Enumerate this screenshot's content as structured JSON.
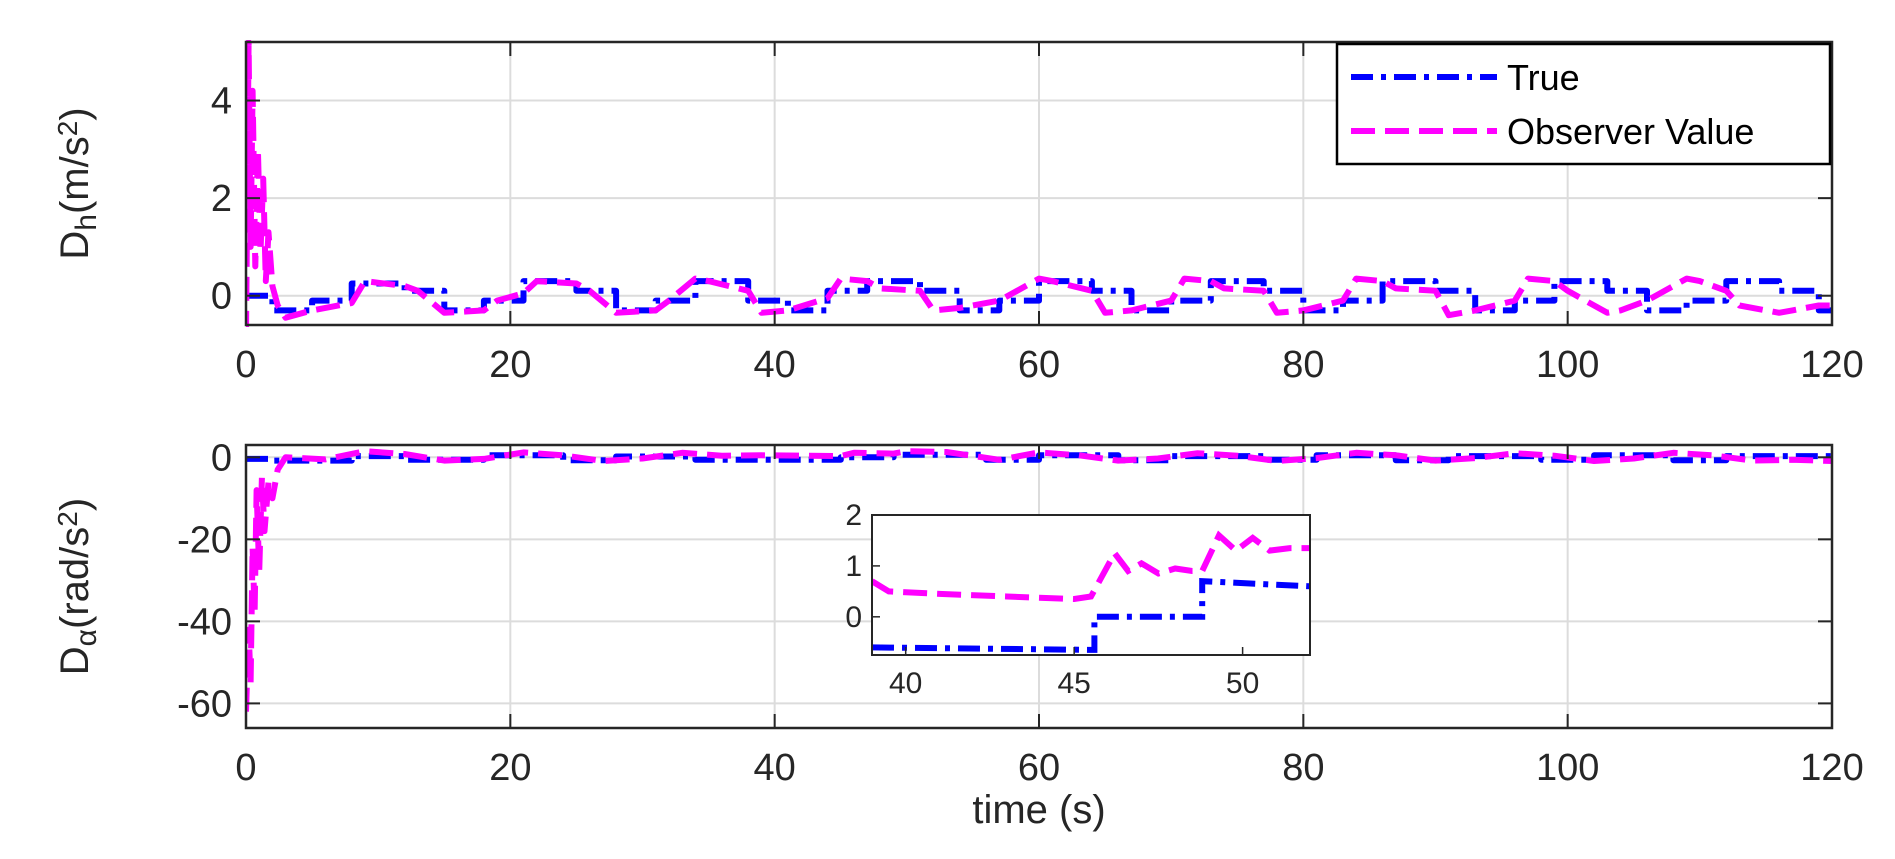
{
  "colors": {
    "true": "#0000ff",
    "observer": "#ff00ff",
    "grid": "#dcdcdc",
    "axis": "#262626"
  },
  "legend": {
    "position": "top-right",
    "entries": [
      "True",
      "Observer Value"
    ]
  },
  "chart_data": [
    {
      "type": "line",
      "name_panel": "top",
      "ylabel_main": "D",
      "ylabel_sub": "h",
      "ylabel_unit": "(m/s",
      "ylabel_sup": "2",
      "ylabel_close": ")",
      "xlabel": "",
      "xlim": [
        0,
        120
      ],
      "ylim": [
        -0.6,
        5.2
      ],
      "xticks": [
        "0",
        "20",
        "40",
        "60",
        "80",
        "100",
        "120"
      ],
      "xtick_values": [
        0,
        20,
        40,
        60,
        80,
        100,
        120
      ],
      "yticks": [
        "0",
        "2",
        "4"
      ],
      "ytick_values": [
        0,
        2,
        4
      ],
      "grid": true,
      "series": [
        {
          "name": "True",
          "x": [
            0,
            2,
            2,
            5,
            5,
            8,
            8,
            12,
            12,
            15,
            15,
            18,
            18,
            21,
            21,
            25,
            25,
            28,
            28,
            31,
            31,
            34,
            34,
            38,
            38,
            41,
            41,
            44,
            44,
            47,
            47,
            51,
            51,
            54,
            54,
            57,
            57,
            60,
            60,
            64,
            64,
            67,
            67,
            70,
            70,
            73,
            73,
            77,
            77,
            80,
            80,
            83,
            83,
            86,
            86,
            90,
            90,
            93,
            93,
            96,
            96,
            99,
            99,
            103,
            103,
            106,
            106,
            109,
            109,
            112,
            112,
            116,
            116,
            119,
            119,
            120
          ],
          "y": [
            0.0,
            0.0,
            -0.3,
            -0.3,
            -0.1,
            -0.1,
            0.25,
            0.25,
            0.1,
            0.1,
            -0.3,
            -0.3,
            -0.1,
            -0.1,
            0.3,
            0.3,
            0.1,
            0.1,
            -0.3,
            -0.3,
            -0.1,
            -0.1,
            0.3,
            0.3,
            -0.1,
            -0.1,
            -0.3,
            -0.3,
            0.1,
            0.1,
            0.3,
            0.3,
            0.1,
            0.1,
            -0.3,
            -0.3,
            -0.1,
            -0.1,
            0.3,
            0.3,
            0.1,
            0.1,
            -0.3,
            -0.3,
            -0.1,
            -0.1,
            0.3,
            0.3,
            0.1,
            0.1,
            -0.3,
            -0.3,
            -0.1,
            -0.1,
            0.3,
            0.3,
            0.1,
            0.1,
            -0.3,
            -0.3,
            -0.1,
            -0.1,
            0.3,
            0.3,
            0.1,
            0.1,
            -0.3,
            -0.3,
            -0.1,
            -0.1,
            0.3,
            0.3,
            0.1,
            0.1,
            -0.3,
            -0.3
          ]
        },
        {
          "name": "Observer Value",
          "x": [
            0,
            0.2,
            0.35,
            0.5,
            0.7,
            0.9,
            1.1,
            1.3,
            1.5,
            1.7,
            2.0,
            2.4,
            3,
            5,
            8,
            9,
            12,
            13,
            15,
            18,
            19,
            21,
            22,
            25,
            26,
            28,
            31,
            32,
            34,
            35,
            38,
            39,
            41,
            44,
            45,
            47,
            48,
            51,
            52,
            54,
            57,
            58,
            60,
            61,
            64,
            65,
            67,
            70,
            71,
            73,
            74,
            77,
            78,
            80,
            83,
            84,
            86,
            87,
            90,
            91,
            93,
            96,
            97,
            99,
            100,
            103,
            104,
            106,
            109,
            110,
            112,
            113,
            116,
            117,
            119,
            120
          ],
          "y": [
            -0.8,
            5.2,
            1.0,
            4.2,
            0.6,
            3.0,
            0.9,
            2.4,
            0.3,
            1.3,
            0.2,
            -0.2,
            -0.45,
            -0.3,
            -0.15,
            0.3,
            0.2,
            0.1,
            -0.35,
            -0.3,
            -0.1,
            0.05,
            0.3,
            0.25,
            0.1,
            -0.35,
            -0.3,
            -0.1,
            0.35,
            0.3,
            0.1,
            -0.35,
            -0.3,
            -0.05,
            0.35,
            0.3,
            0.15,
            0.1,
            -0.3,
            -0.25,
            -0.1,
            0.05,
            0.35,
            0.3,
            0.1,
            -0.35,
            -0.3,
            -0.1,
            0.35,
            0.3,
            0.15,
            0.1,
            -0.35,
            -0.3,
            -0.1,
            0.35,
            0.3,
            0.15,
            0.1,
            -0.4,
            -0.3,
            -0.1,
            0.35,
            0.3,
            0.1,
            -0.35,
            -0.3,
            -0.1,
            0.35,
            0.3,
            0.1,
            -0.2,
            -0.35,
            -0.3,
            -0.2,
            -0.2
          ]
        }
      ]
    },
    {
      "type": "line",
      "name_panel": "bottom",
      "ylabel_main": "D",
      "ylabel_sub": "α",
      "ylabel_unit": "(rad/s",
      "ylabel_sup": "2",
      "ylabel_close": ")",
      "xlabel": "time (s)",
      "xlim": [
        0,
        120
      ],
      "ylim": [
        -66,
        3
      ],
      "xticks": [
        "0",
        "20",
        "40",
        "60",
        "80",
        "100",
        "120"
      ],
      "xtick_values": [
        0,
        20,
        40,
        60,
        80,
        100,
        120
      ],
      "yticks": [
        "0",
        "-20",
        "-40",
        "-60"
      ],
      "ytick_values": [
        0,
        -20,
        -40,
        -60
      ],
      "grid": true,
      "series": [
        {
          "name": "True",
          "x": [
            0,
            2,
            2,
            8,
            8,
            12,
            12,
            18,
            18,
            24,
            24,
            28,
            28,
            34,
            34,
            39,
            39,
            45,
            45,
            49,
            49,
            56,
            56,
            60,
            60,
            66,
            66,
            70,
            70,
            77,
            77,
            81,
            81,
            87,
            87,
            91,
            91,
            98,
            98,
            102,
            102,
            108,
            108,
            112,
            112,
            120
          ],
          "y": [
            -0.4,
            -0.4,
            -0.8,
            -0.8,
            0.3,
            0.3,
            -0.6,
            -0.6,
            0.5,
            0.5,
            -0.7,
            -0.7,
            0.2,
            0.2,
            -0.6,
            -0.6,
            -0.6,
            -0.6,
            0.0,
            0.0,
            0.6,
            0.6,
            -0.6,
            -0.6,
            0.5,
            0.5,
            -0.7,
            -0.7,
            0.3,
            0.3,
            -0.6,
            -0.6,
            0.5,
            0.5,
            -0.7,
            -0.7,
            0.3,
            0.3,
            -0.6,
            -0.6,
            0.5,
            0.5,
            -0.7,
            -0.7,
            0.3,
            0.3
          ]
        },
        {
          "name": "Observer Value",
          "x": [
            0,
            0.2,
            0.35,
            0.5,
            0.65,
            0.8,
            1.0,
            1.2,
            1.4,
            1.7,
            2.0,
            2.4,
            3,
            6,
            9,
            12,
            15,
            18,
            21,
            24,
            27,
            30,
            33,
            36,
            39,
            42,
            45,
            46,
            49,
            50,
            53,
            57,
            60,
            63,
            66,
            69,
            72,
            75,
            78,
            81,
            84,
            87,
            90,
            93,
            96,
            99,
            102,
            105,
            108,
            111,
            114,
            117,
            120
          ],
          "y": [
            -62,
            -42,
            -55,
            -22,
            -38,
            -8,
            -28,
            -5,
            -18,
            -6,
            -10,
            -3,
            0,
            -0.5,
            1.5,
            0.8,
            -0.8,
            -0.4,
            1.2,
            0.5,
            -0.9,
            -0.3,
            1.1,
            0.4,
            0.5,
            0.4,
            0.3,
            1.1,
            0.9,
            1.5,
            1.3,
            -0.6,
            1.2,
            0.5,
            -0.8,
            -0.3,
            1.0,
            0.4,
            -0.9,
            -0.2,
            1.1,
            0.5,
            -0.8,
            -0.2,
            1.0,
            0.4,
            -0.9,
            -0.3,
            1.1,
            0.5,
            -0.8,
            -0.6,
            -0.9
          ]
        }
      ],
      "inset": {
        "xlim": [
          39,
          52
        ],
        "ylim": [
          -0.75,
          2
        ],
        "xticks": [
          "40",
          "45",
          "50"
        ],
        "xtick_values": [
          40,
          45,
          50
        ],
        "yticks": [
          "0",
          "1",
          "2"
        ],
        "ytick_values": [
          0,
          1,
          2
        ],
        "series": [
          {
            "name": "True",
            "x": [
              39,
              45.6,
              45.6,
              48.8,
              48.8,
              52
            ],
            "y": [
              -0.6,
              -0.65,
              0.0,
              0.0,
              0.7,
              0.6
            ]
          },
          {
            "name": "Observer Value",
            "x": [
              39,
              39.5,
              41,
              43,
              45,
              45.5,
              46.2,
              46.6,
              47,
              47.5,
              48,
              48.5,
              48.8,
              49.3,
              49.8,
              50.3,
              50.8,
              51.4,
              52
            ],
            "y": [
              0.7,
              0.5,
              0.45,
              0.4,
              0.35,
              0.4,
              1.25,
              0.9,
              1.05,
              0.85,
              0.95,
              0.9,
              0.9,
              1.6,
              1.3,
              1.55,
              1.3,
              1.35,
              1.35
            ]
          }
        ]
      }
    }
  ]
}
